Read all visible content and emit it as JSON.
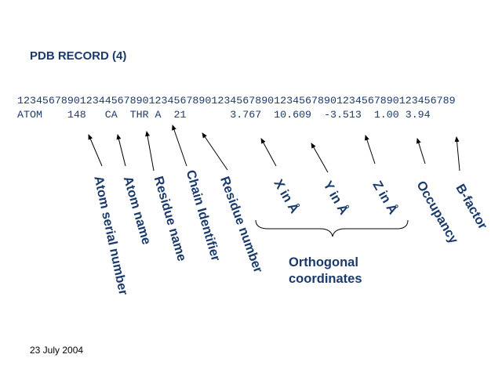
{
  "title": "PDB RECORD (4)",
  "ruler": "1234567890123445678901234567890123456789012345678901234567890123456789",
  "record": "ATOM    148   CA  THR A  21       3.767  10.609  -3.513  1.00 3.94",
  "labels": {
    "atom_serial": "Atom serial number",
    "atom_name": "Atom name",
    "residue_name": "Residue name",
    "chain_id": "Chain Identifier",
    "residue_number": "Residue number",
    "x": "X in Å",
    "y": "Y in Å",
    "z": "Z in Å",
    "occupancy": "Occupancy",
    "bfactor": "B-factor"
  },
  "group_label_line1": "Orthogonal",
  "group_label_line2": "coordinates",
  "date": "23 July 2004",
  "colors": {
    "text": "#1a3a6b",
    "arrow": "#000000"
  }
}
